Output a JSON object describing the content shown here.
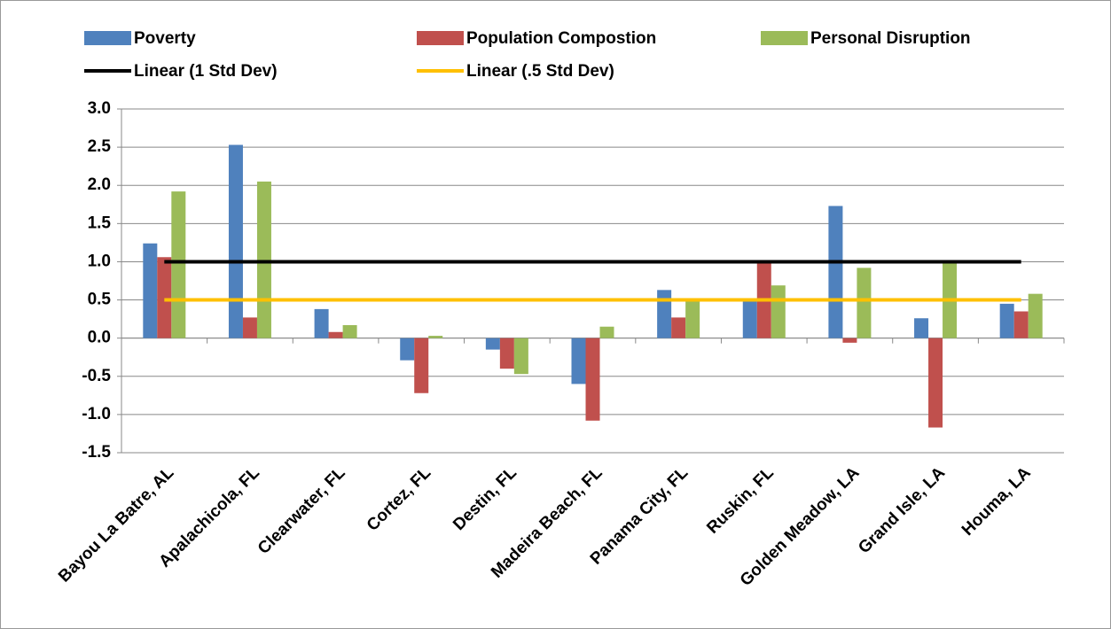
{
  "chart_data": {
    "type": "bar",
    "categories": [
      "Bayou La Batre, AL",
      "Apalachicola, FL",
      "Clearwater, FL",
      "Cortez, FL",
      "Destin, FL",
      "Madeira Beach, FL",
      "Panama City, FL",
      "Ruskin, FL",
      "Golden Meadow, LA",
      "Grand Isle, LA",
      "Houma, LA"
    ],
    "series": [
      {
        "name": "Poverty",
        "color": "#4f81bd",
        "values": [
          1.24,
          2.53,
          0.38,
          -0.29,
          -0.15,
          -0.6,
          0.63,
          0.5,
          1.73,
          0.26,
          0.45
        ]
      },
      {
        "name": "Population Compostion",
        "color": "#c0504d",
        "values": [
          1.06,
          0.27,
          0.08,
          -0.72,
          -0.4,
          -1.08,
          0.27,
          1.0,
          -0.06,
          -1.17,
          0.35
        ]
      },
      {
        "name": "Personal Disruption",
        "color": "#9bbb59",
        "values": [
          1.92,
          2.05,
          0.17,
          0.03,
          -0.47,
          0.15,
          0.5,
          0.69,
          0.92,
          0.98,
          0.58
        ]
      },
      {
        "name": "Linear (1 Std Dev)",
        "color": "#000000",
        "type": "line",
        "values": [
          1,
          1,
          1,
          1,
          1,
          1,
          1,
          1,
          1,
          1,
          1
        ]
      },
      {
        "name": "Linear (.5 Std Dev)",
        "color": "#ffc000",
        "type": "line",
        "values": [
          0.5,
          0.5,
          0.5,
          0.5,
          0.5,
          0.5,
          0.5,
          0.5,
          0.5,
          0.5,
          0.5
        ]
      }
    ],
    "ylim": [
      -1.5,
      3
    ],
    "yticks": [
      {
        "value": -1.5,
        "label": "-1.5"
      },
      {
        "value": -1,
        "label": "-1.0"
      },
      -0.5,
      {
        "value": 0,
        "label": "0.0"
      },
      0.5,
      {
        "value": 1,
        "label": "1.0"
      },
      1.5,
      {
        "value": 2,
        "label": "2.0"
      },
      2.5,
      {
        "value": 3,
        "label": "3.0"
      }
    ],
    "grid": true
  }
}
